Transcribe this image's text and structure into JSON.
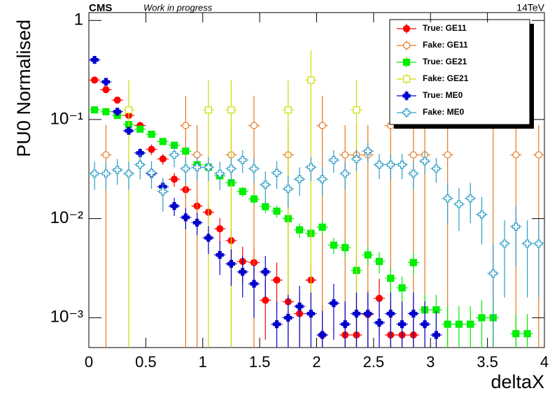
{
  "chart_data": {
    "type": "errorbar",
    "experiment": "CMS",
    "status": "Work in progress",
    "energy": "14TeV",
    "x_label": "deltaX",
    "y_label": "PU0 Normalised",
    "log_y": true,
    "legend": "top-right",
    "xlim": [
      0,
      4
    ],
    "ylim": [
      0.0005,
      1.2
    ],
    "xticks": [
      0,
      0.5,
      1,
      1.5,
      2,
      2.5,
      3,
      3.5,
      4
    ],
    "yticks": [
      {
        "value": 0.001,
        "label": "10⁻³"
      },
      {
        "value": 0.01,
        "label": "10⁻²"
      },
      {
        "value": 0.1,
        "label": "10⁻¹"
      },
      1
    ],
    "x": [
      0.05,
      0.15,
      0.25,
      0.35,
      0.45,
      0.55,
      0.65,
      0.75,
      0.85,
      0.95,
      1.05,
      1.15,
      1.25,
      1.35,
      1.45,
      1.55,
      1.65,
      1.75,
      1.85,
      1.95,
      2.05,
      2.15,
      2.25,
      2.35,
      2.45,
      2.55,
      2.65,
      2.75,
      2.85,
      2.95,
      3.05,
      3.15,
      3.25,
      3.35,
      3.45,
      3.55,
      3.65,
      3.75,
      3.85,
      3.95
    ],
    "xerr": 0.05,
    "series": [
      {
        "name": "True: GE11",
        "color": "#ff0000",
        "marker": "circle",
        "values": [
          0.25,
          0.2,
          0.157,
          0.11,
          0.087,
          0.05,
          0.04,
          0.025,
          0.0196,
          0.0134,
          0.0116,
          0.0079,
          0.006,
          0.0037,
          0.0036,
          0.0015,
          0.0024,
          0.00145,
          0.0011,
          0.0024,
          0.00067,
          null,
          0.00067,
          0.00067,
          0.00108,
          0.00157,
          0.00067,
          0.00067,
          0.00067,
          null,
          null,
          null,
          null,
          null,
          null,
          null,
          null,
          null,
          null,
          null
        ],
        "errors": [
          0.012,
          0.011,
          0.01,
          0.008,
          0.007,
          0.006,
          0.005,
          0.004,
          0.0035,
          0.003,
          0.0028,
          0.0022,
          0.002,
          0.0015,
          0.0015,
          0.0009,
          0.0012,
          0.0008,
          0.0007,
          0.0012,
          0.00067,
          null,
          0.00067,
          0.00067,
          0.0008,
          0.0009,
          0.00067,
          0.00067,
          0.00067,
          null,
          null,
          null,
          null,
          null,
          null,
          null,
          null,
          null,
          null,
          null
        ]
      },
      {
        "name": "Fake: GE11",
        "color": "#e8761c",
        "marker": "open-circle",
        "values": [
          null,
          0.044,
          null,
          null,
          null,
          null,
          null,
          null,
          0.087,
          0.044,
          null,
          null,
          0.044,
          null,
          0.087,
          null,
          null,
          0.044,
          null,
          null,
          0.087,
          null,
          0.044,
          0.044,
          0.044,
          null,
          0.087,
          null,
          0.044,
          0.044,
          null,
          0.044,
          null,
          null,
          null,
          0.087,
          null,
          0.044,
          null,
          0.044
        ],
        "errors": [
          null,
          0.044,
          null,
          null,
          null,
          null,
          null,
          null,
          0.087,
          0.044,
          null,
          null,
          0.044,
          null,
          0.087,
          null,
          null,
          0.044,
          null,
          null,
          0.087,
          null,
          0.044,
          0.044,
          0.044,
          null,
          0.087,
          null,
          0.044,
          0.044,
          null,
          0.044,
          null,
          null,
          null,
          0.087,
          null,
          0.044,
          null,
          0.044
        ]
      },
      {
        "name": "True: GE21",
        "color": "#00ee00",
        "marker": "square",
        "values": [
          0.125,
          0.12,
          0.11,
          0.089,
          0.08,
          0.071,
          0.06,
          0.055,
          0.048,
          0.035,
          0.033,
          0.027,
          0.023,
          0.0188,
          0.0158,
          0.0132,
          0.0119,
          0.01,
          0.0077,
          0.0071,
          0.0082,
          0.0054,
          0.0051,
          0.003,
          0.0043,
          0.0037,
          0.0025,
          0.002,
          0.0036,
          0.0012,
          0.0012,
          0.00086,
          0.00086,
          0.00086,
          0.001,
          0.001,
          null,
          0.00069,
          0.00069,
          null
        ],
        "errors": [
          0.006,
          0.006,
          0.006,
          0.005,
          0.005,
          0.005,
          0.004,
          0.004,
          0.004,
          0.003,
          0.003,
          0.003,
          0.0025,
          0.0022,
          0.002,
          0.0018,
          0.0017,
          0.0015,
          0.0013,
          0.0012,
          0.0013,
          0.001,
          0.001,
          0.0008,
          0.0009,
          0.0009,
          0.0007,
          0.0006,
          0.0009,
          0.0005,
          0.0005,
          0.00045,
          0.00045,
          0.00045,
          0.0005,
          0.0005,
          null,
          0.0004,
          0.0004,
          null
        ]
      },
      {
        "name": "Fake: GE21",
        "color": "#ccdd00",
        "marker": "open-square",
        "values": [
          null,
          null,
          null,
          0.125,
          null,
          null,
          null,
          null,
          null,
          null,
          0.125,
          null,
          0.125,
          null,
          null,
          null,
          null,
          0.125,
          null,
          0.25,
          null,
          null,
          null,
          0.125,
          null,
          null,
          null,
          null,
          null,
          null,
          null,
          null,
          null,
          null,
          null,
          null,
          null,
          null,
          null,
          null
        ],
        "errors": [
          null,
          null,
          null,
          0.125,
          null,
          null,
          null,
          null,
          null,
          null,
          0.125,
          null,
          0.125,
          null,
          null,
          null,
          null,
          0.125,
          null,
          0.25,
          null,
          null,
          null,
          0.125,
          null,
          null,
          null,
          null,
          null,
          null,
          null,
          null,
          null,
          null,
          null,
          null,
          null,
          null,
          null,
          null
        ]
      },
      {
        "name": "True: ME0",
        "color": "#0000cc",
        "marker": "cross",
        "values": [
          0.4,
          0.24,
          0.12,
          0.077,
          0.046,
          0.0285,
          0.021,
          0.0134,
          0.0103,
          0.0091,
          0.0064,
          0.0043,
          0.0035,
          0.0029,
          0.0022,
          0.0029,
          0.00086,
          0.001,
          0.0013,
          0.0011,
          0.00067,
          0.0014,
          0.00086,
          0.0011,
          0.0011,
          0.00089,
          0.0011,
          0.00086,
          0.0011,
          0.00086,
          0.00067,
          null,
          null,
          null,
          null,
          null,
          null,
          null,
          null,
          null
        ],
        "errors": [
          0.015,
          0.011,
          0.008,
          0.006,
          0.005,
          0.004,
          0.0035,
          0.0028,
          0.0025,
          0.0023,
          0.002,
          0.0016,
          0.0014,
          0.0013,
          0.0012,
          0.0013,
          0.0006,
          0.0007,
          0.0008,
          0.0007,
          0.0005,
          0.0008,
          0.0006,
          0.0007,
          0.0007,
          0.0006,
          0.0007,
          0.0006,
          0.0007,
          0.0006,
          0.0005,
          null,
          null,
          null,
          null,
          null,
          null,
          null,
          null,
          null
        ]
      },
      {
        "name": "Fake: ME0",
        "color": "#2c9cc8",
        "marker": "open-cross",
        "values": [
          0.0285,
          0.0285,
          0.031,
          0.0285,
          0.035,
          0.029,
          0.0188,
          0.044,
          0.032,
          0.033,
          0.033,
          0.0285,
          0.032,
          0.039,
          0.032,
          0.022,
          0.029,
          0.02,
          0.025,
          0.033,
          0.025,
          0.039,
          0.0285,
          0.04,
          0.048,
          0.035,
          0.035,
          0.035,
          0.0285,
          0.038,
          0.032,
          0.016,
          0.014,
          0.016,
          0.011,
          0.0028,
          0.0056,
          0.0083,
          0.0056,
          0.0056
        ],
        "errors": [
          0.009,
          0.009,
          0.009,
          0.009,
          0.01,
          0.009,
          0.007,
          0.011,
          0.009,
          0.009,
          0.009,
          0.009,
          0.009,
          0.01,
          0.009,
          0.008,
          0.009,
          0.007,
          0.008,
          0.009,
          0.008,
          0.01,
          0.009,
          0.01,
          0.011,
          0.01,
          0.01,
          0.01,
          0.009,
          0.01,
          0.009,
          0.007,
          0.0065,
          0.007,
          0.0055,
          0.0028,
          0.004,
          0.005,
          0.004,
          0.004
        ]
      }
    ]
  }
}
